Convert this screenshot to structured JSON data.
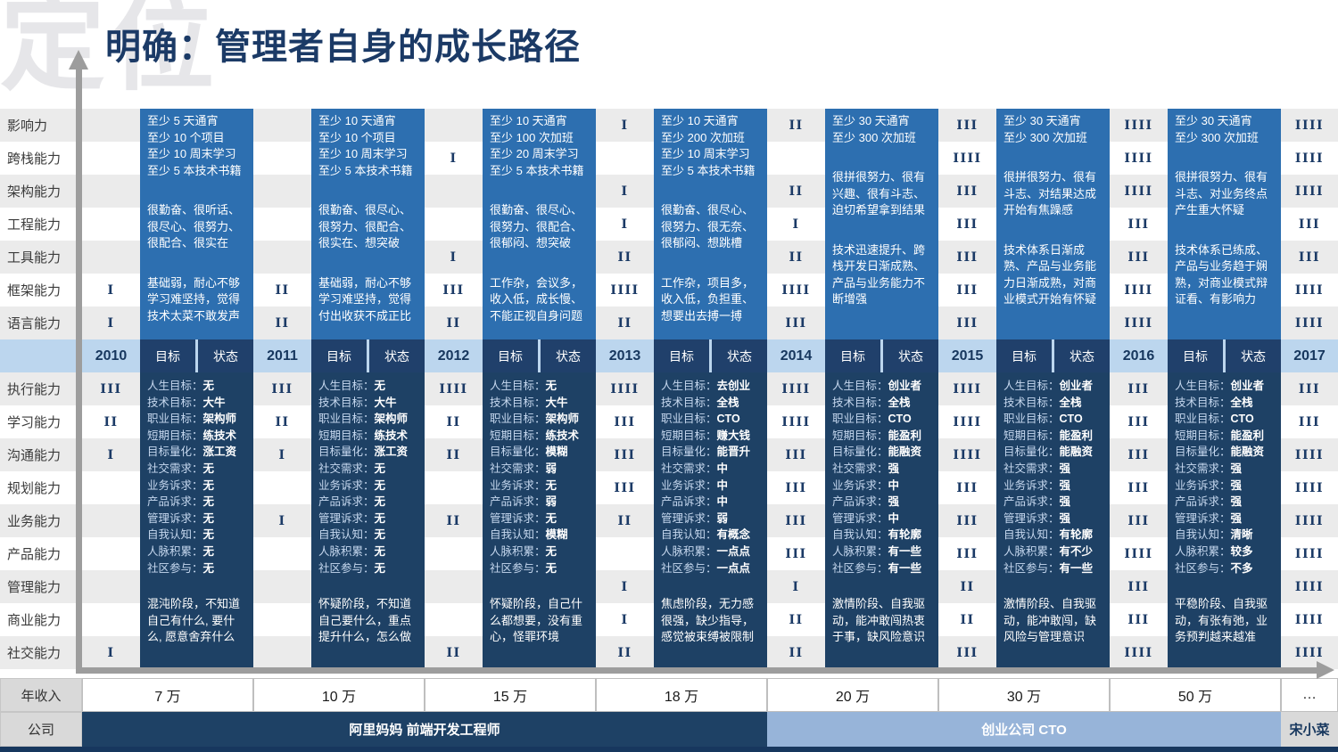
{
  "title": "明确：管理者自身的成长路径",
  "watermark": "定位",
  "header": {
    "goal": "目标",
    "status": "状态"
  },
  "income_row_label": "年收入",
  "company_row_label": "公司",
  "top_rows": [
    "影响力",
    "跨栈能力",
    "架构能力",
    "工程能力",
    "工具能力",
    "框架能力",
    "语言能力"
  ],
  "bottom_rows": [
    "执行能力",
    "学习能力",
    "沟通能力",
    "规划能力",
    "业务能力",
    "产品能力",
    "管理能力",
    "商业能力",
    "社交能力"
  ],
  "colors": {
    "title": "#1b3a66",
    "top_block_bg": "#2d6fb0",
    "bottom_block_bg": "#1e4165",
    "header_strip_bg": "#bcd6ee",
    "header_cell_bg": "#20406b",
    "company_bar_dark": "#1e4165",
    "company_bar_light": "#97b4d9",
    "axis_gray": "#9d9d9d"
  },
  "company_segments": [
    {
      "label": "阿里妈妈 前端开发工程师",
      "from_year": "2010",
      "to_year": "2013",
      "style": "dark"
    },
    {
      "label": "创业公司 CTO",
      "from_year": "2014",
      "to_year": "2016",
      "style": "light"
    },
    {
      "label": "宋小菜",
      "from_year": "2017",
      "to_year": "2017",
      "style": "plain"
    }
  ],
  "years": [
    {
      "year": "2010",
      "income": "7 万",
      "top_tallies": [
        "",
        "",
        "",
        "",
        "",
        "I",
        "I"
      ],
      "top_paragraphs": [
        "至少 5 天通宵\n至少 10 个项目\n至少 10 周末学习\n至少 5 本技术书籍",
        "很勤奋、很听话、\n很尽心、很努力、\n很配合、很实在",
        "基础弱，耐心不够\n学习难坚持，觉得\n技术太菜不敢发声"
      ],
      "bottom_tallies": [
        "III",
        "II",
        "I",
        "",
        "",
        "",
        "",
        "",
        "I"
      ],
      "goals": [
        "人生目标：无",
        "技术目标：大牛",
        "职业目标：架构师",
        "短期目标：练技术",
        "目标量化：涨工资",
        "社交需求：无",
        "业务诉求：无",
        "产品诉求：无",
        "管理诉求：无",
        "自我认知：无",
        "人脉积累：无",
        "社区参与：无"
      ],
      "summary": "混沌阶段，不知道\n自己有什么, 要什\n么, 愿意舍弃什么"
    },
    {
      "year": "2011",
      "income": "10 万",
      "top_tallies": [
        "",
        "",
        "",
        "",
        "",
        "II",
        "II"
      ],
      "top_paragraphs": [
        "至少 10 天通宵\n至少 10 个项目\n至少 10 周末学习\n至少 5 本技术书籍",
        "很勤奋、很尽心、\n很努力、很配合、\n很实在、想突破",
        "基础弱，耐心不够\n学习难坚持，觉得\n付出收获不成正比"
      ],
      "bottom_tallies": [
        "III",
        "II",
        "I",
        "",
        "I",
        "",
        "",
        "",
        ""
      ],
      "goals": [
        "人生目标：无",
        "技术目标：大牛",
        "职业目标：架构师",
        "短期目标：练技术",
        "目标量化：涨工资",
        "社交需求：无",
        "业务诉求：无",
        "产品诉求：无",
        "管理诉求：无",
        "自我认知：无",
        "人脉积累：无",
        "社区参与：无"
      ],
      "summary": "怀疑阶段，不知道\n自己要什么，重点\n提升什么，怎么做"
    },
    {
      "year": "2012",
      "income": "15 万",
      "top_tallies": [
        "",
        "I",
        "",
        "",
        "I",
        "III",
        "II"
      ],
      "top_paragraphs": [
        "至少 10 天通宵\n至少 100 次加班\n至少 20 周末学习\n至少 5 本技术书籍",
        "很勤奋、很尽心、\n很努力、很配合、\n很郁闷、想突破",
        "工作杂，会议多，\n收入低，成长慢、\n不能正视自身问题"
      ],
      "bottom_tallies": [
        "IIII",
        "II",
        "II",
        "",
        "II",
        "",
        "",
        "",
        "II"
      ],
      "goals": [
        "人生目标：无",
        "技术目标：大牛",
        "职业目标：架构师",
        "短期目标：练技术",
        "目标量化：模糊",
        "社交需求：弱",
        "业务诉求：无",
        "产品诉求：弱",
        "管理诉求：无",
        "自我认知：模糊",
        "人脉积累：无",
        "社区参与：无"
      ],
      "summary": "怀疑阶段，自己什\n么都想要，没有重\n心，怪罪环境"
    },
    {
      "year": "2013",
      "income": "18 万",
      "top_tallies": [
        "I",
        "",
        "I",
        "I",
        "II",
        "IIII",
        "II"
      ],
      "top_paragraphs": [
        "至少 10 天通宵\n至少 200 次加班\n至少 10 周末学习\n至少 5 本技术书籍",
        "很勤奋、很尽心、\n很努力、很无奈、\n很郁闷、想跳槽",
        "工作杂，项目多，\n收入低，负担重、\n想要出去搏一搏"
      ],
      "bottom_tallies": [
        "IIII",
        "III",
        "III",
        "III",
        "II",
        "",
        "I",
        "I",
        "II"
      ],
      "goals": [
        "人生目标：去创业",
        "技术目标：全栈",
        "职业目标：CTO",
        "短期目标：赚大钱",
        "目标量化：能晋升",
        "社交需求：中",
        "业务诉求：中",
        "产品诉求：中",
        "管理诉求：弱",
        "自我认知：有概念",
        "人脉积累：一点点",
        "社区参与：一点点"
      ],
      "summary": "焦虑阶段，无力感\n很强，缺少指导，\n感觉被束缚被限制"
    },
    {
      "year": "2014",
      "income": "20 万",
      "top_tallies": [
        "II",
        "",
        "II",
        "I",
        "II",
        "IIII",
        "III"
      ],
      "top_paragraphs": [
        "至少 30 天通宵\n至少 300 次加班",
        "很拼很努力、很有\n兴趣、很有斗志、\n迫切希望拿到结果",
        "技术迅速提升、跨\n栈开发日渐成熟、\n产品与业务能力不\n断增强"
      ],
      "bottom_tallies": [
        "IIII",
        "IIII",
        "III",
        "III",
        "III",
        "III",
        "I",
        "II",
        "II"
      ],
      "goals": [
        "人生目标：创业者",
        "技术目标：全栈",
        "职业目标：CTO",
        "短期目标：能盈利",
        "目标量化：能融资",
        "社交需求：强",
        "业务诉求：中",
        "产品诉求：强",
        "管理诉求：中",
        "自我认知：有轮廓",
        "人脉积累：有一些",
        "社区参与：有一些"
      ],
      "summary": "激情阶段、自我驱\n动，能冲敢闯热衷\n于事，缺风险意识"
    },
    {
      "year": "2015",
      "income": "30 万",
      "top_tallies": [
        "III",
        "IIII",
        "III",
        "III",
        "III",
        "III",
        "III"
      ],
      "top_paragraphs": [
        "至少 30 天通宵\n至少 300 次加班",
        "很拼很努力、很有\n斗志、对结果达成\n开始有焦躁感",
        "技术体系日渐成\n熟、产品与业务能\n力日渐成熟，对商\n业模式开始有怀疑"
      ],
      "bottom_tallies": [
        "IIII",
        "IIII",
        "IIII",
        "III",
        "III",
        "III",
        "II",
        "II",
        "III"
      ],
      "goals": [
        "人生目标：创业者",
        "技术目标：全栈",
        "职业目标：CTO",
        "短期目标：能盈利",
        "目标量化：能融资",
        "社交需求：强",
        "业务诉求：强",
        "产品诉求：强",
        "管理诉求：强",
        "自我认知：有轮廓",
        "人脉积累：有不少",
        "社区参与：有一些"
      ],
      "summary": "激情阶段、自我驱\n动，能冲敢闯，缺\n风险与管理意识"
    },
    {
      "year": "2016",
      "income": "50 万",
      "top_tallies": [
        "IIII",
        "IIII",
        "IIII",
        "III",
        "III",
        "IIII",
        "IIII"
      ],
      "top_paragraphs": [
        "至少 30 天通宵\n至少 300 次加班",
        "很拼很努力、很有\n斗志、对业务终点\n产生重大怀疑",
        "技术体系已练成、\n产品与业务趋于娴\n熟，对商业模式辩\n证看、有影响力"
      ],
      "bottom_tallies": [
        "III",
        "III",
        "III",
        "III",
        "III",
        "IIII",
        "III",
        "III",
        "IIII"
      ],
      "goals": [
        "人生目标：创业者",
        "技术目标：全栈",
        "职业目标：CTO",
        "短期目标：能盈利",
        "目标量化：能融资",
        "社交需求：强",
        "业务诉求：强",
        "产品诉求：强",
        "管理诉求：强",
        "自我认知：清晰",
        "人脉积累：较多",
        "社区参与：不多"
      ],
      "summary": "平稳阶段、自我驱\n动，有张有弛，业\n务预判越来越准"
    },
    {
      "year": "2017",
      "income": "…",
      "top_tallies": [
        "IIII",
        "IIII",
        "IIII",
        "III",
        "III",
        "IIII",
        "IIII"
      ],
      "top_paragraphs": [],
      "bottom_tallies": [
        "III",
        "III",
        "IIII",
        "IIII",
        "IIII",
        "IIII",
        "IIII",
        "IIII",
        "IIII"
      ],
      "goals": [],
      "summary": ""
    }
  ]
}
